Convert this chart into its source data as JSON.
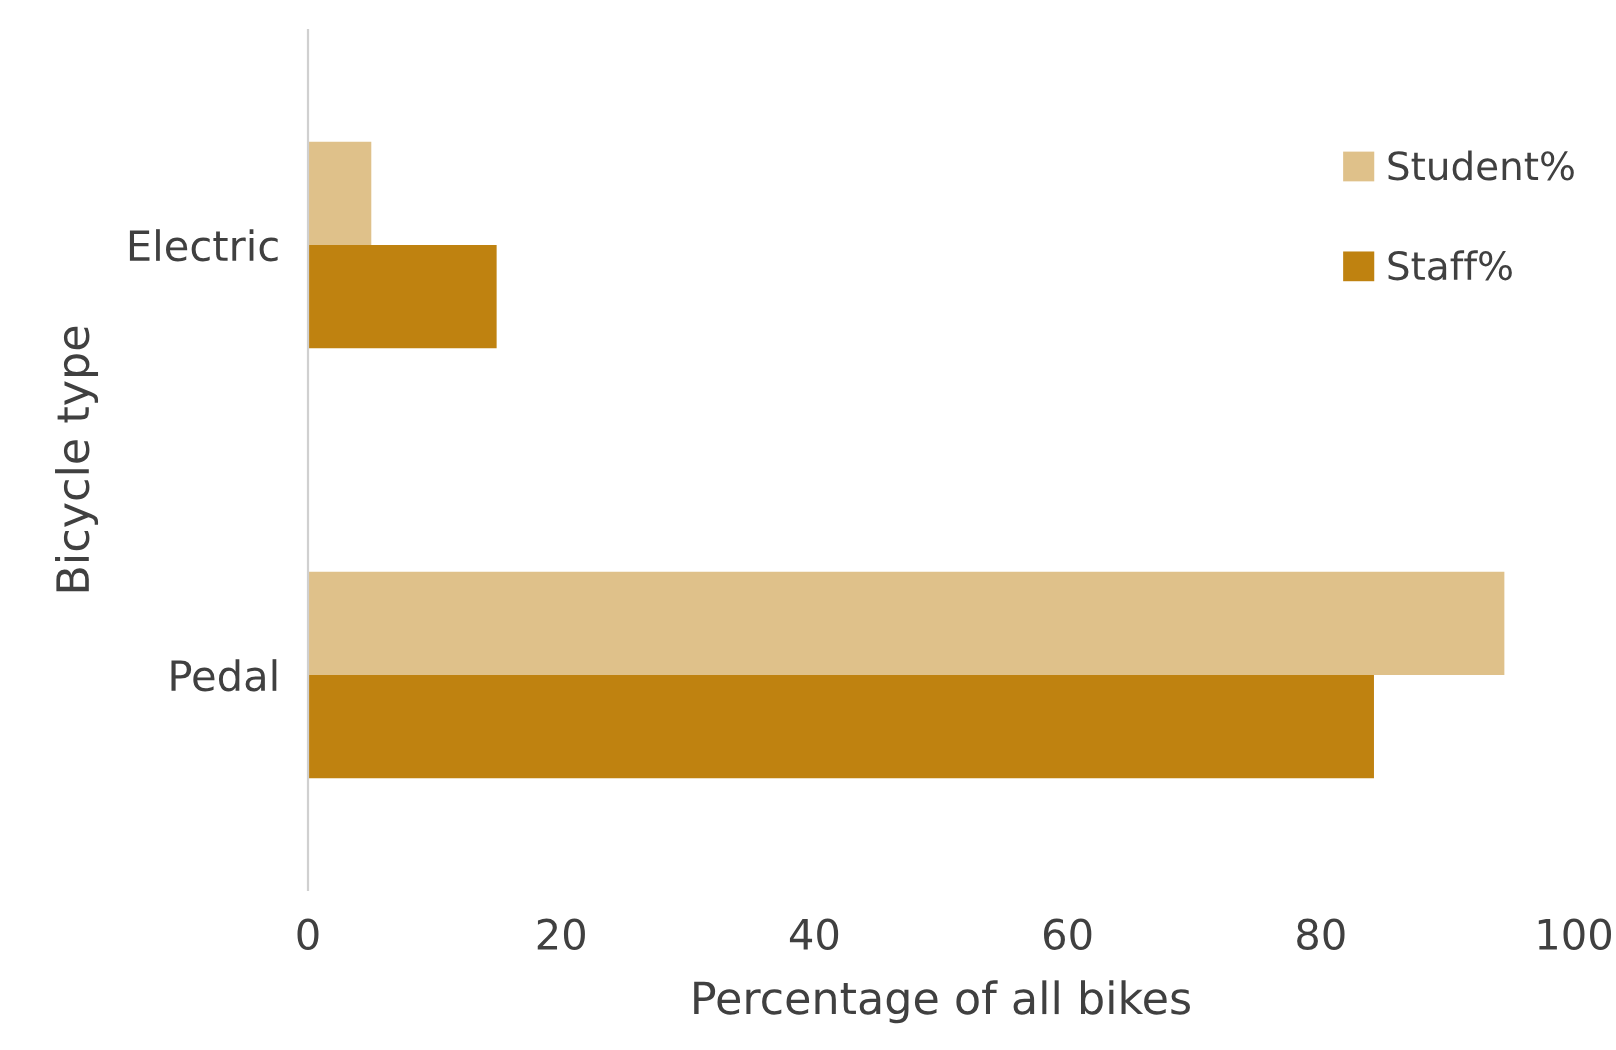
{
  "chart_data": {
    "type": "bar",
    "orientation": "horizontal",
    "xlabel": "Percentage of all bikes",
    "ylabel": "Bicycle type",
    "categories": [
      "Electric",
      "Pedal"
    ],
    "series": [
      {
        "name": "Student%",
        "color": "#dfc18a",
        "values": [
          5,
          94.5
        ]
      },
      {
        "name": "Staff%",
        "color": "#bf8210",
        "values": [
          14.9,
          84.2
        ]
      }
    ],
    "xlim": [
      0,
      100
    ],
    "xticks": [
      0,
      20,
      40,
      60,
      80,
      100
    ],
    "grid": false,
    "legend": "right"
  }
}
